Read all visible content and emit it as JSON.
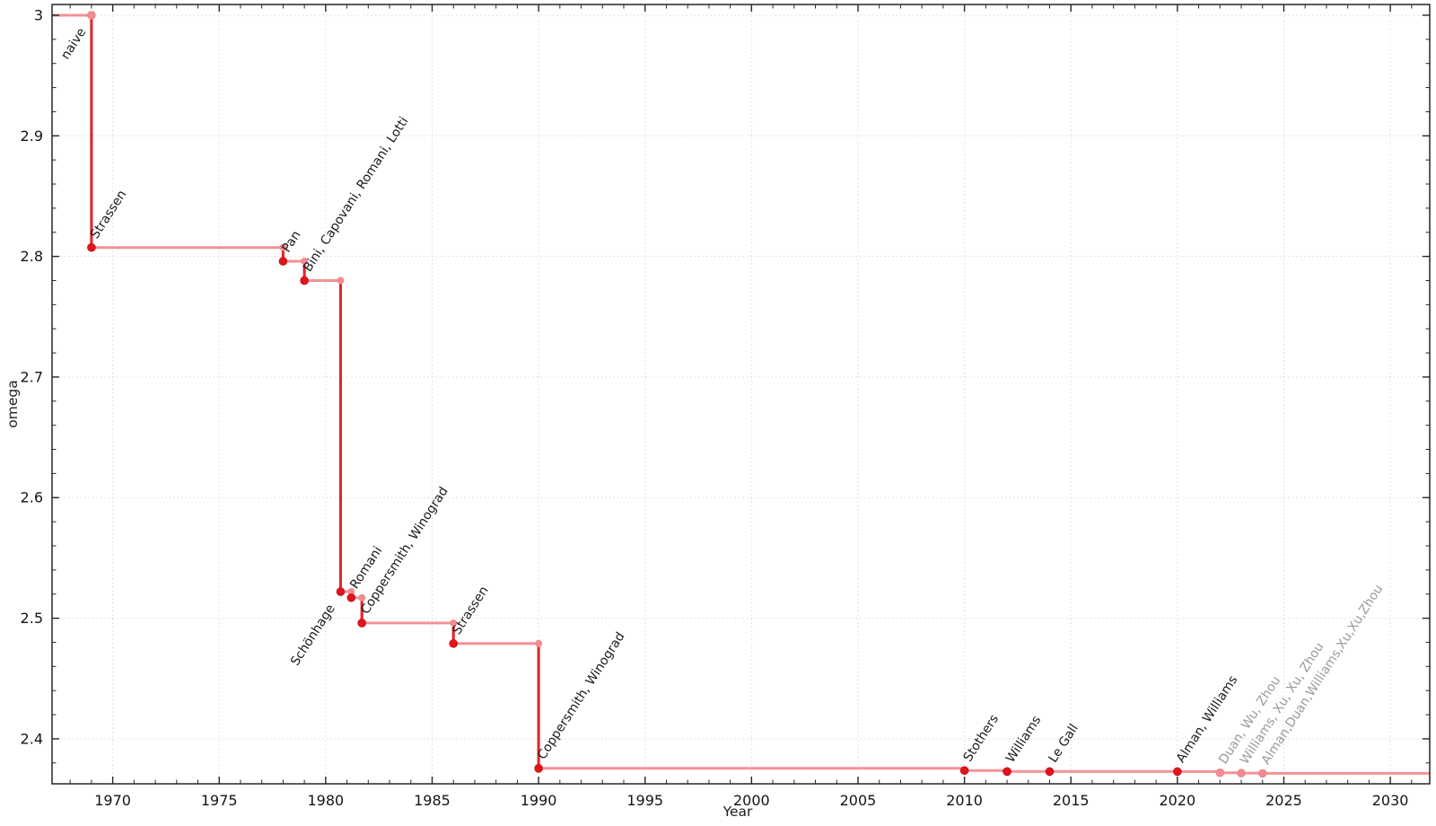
{
  "chart_data": {
    "type": "line",
    "line_style": "step-post",
    "title": "",
    "xlabel": "Year",
    "ylabel": "omega",
    "xlim": [
      1967.15,
      2031.85
    ],
    "ylim": [
      2.3627,
      3.0089
    ],
    "x_major_ticks": [
      1970,
      1975,
      1980,
      1985,
      1990,
      1995,
      2000,
      2005,
      2010,
      2015,
      2020,
      2025,
      2030
    ],
    "x_minor_step": 1,
    "y_major_ticks": [
      2.4,
      2.5,
      2.6,
      2.7,
      2.8,
      2.9,
      3.0
    ],
    "y_tick_labels": [
      "2.4",
      "2.5",
      "2.6",
      "2.7",
      "2.8",
      "2.9",
      "3"
    ],
    "y_minor_step": 0.02,
    "grid": "dotted-at-major-ticks",
    "legend": "none",
    "colors": {
      "step_line": "#f29296",
      "drop_line": "#e3252b",
      "point": "#e0151b",
      "secondary_point": "#ef8d91",
      "label": "#1a1a1a",
      "muted_label": "#9b9b9b",
      "grid": "#d9d9d9",
      "axis": "#262626",
      "background": "#ffffff"
    },
    "points": [
      {
        "label": "naive",
        "year": 1969,
        "omega": 3.0,
        "marker": "light",
        "muted": false,
        "label_anchor": "end"
      },
      {
        "label": "Strassen",
        "year": 1969,
        "omega": 2.8074,
        "marker": "dark",
        "muted": false
      },
      {
        "label": "Pan",
        "year": 1978,
        "omega": 2.796,
        "marker": "dark",
        "muted": false
      },
      {
        "label": "Bini, Capovani, Romani, Lotti",
        "year": 1979,
        "omega": 2.78,
        "marker": "dark",
        "muted": false
      },
      {
        "label": "Schönhage",
        "year": 1980.7,
        "omega": 2.522,
        "marker": "dark",
        "muted": false,
        "label_anchor": "end"
      },
      {
        "label": "Romani",
        "year": 1981.2,
        "omega": 2.517,
        "marker": "dark",
        "muted": false
      },
      {
        "label": "Coppersmith, Winograd",
        "year": 1981.7,
        "omega": 2.496,
        "marker": "dark",
        "muted": false
      },
      {
        "label": "Strassen",
        "year": 1986,
        "omega": 2.479,
        "marker": "dark",
        "muted": false
      },
      {
        "label": "Coppersmith, Winograd",
        "year": 1990,
        "omega": 2.3755,
        "marker": "dark",
        "muted": false
      },
      {
        "label": "Stothers",
        "year": 2010,
        "omega": 2.3737,
        "marker": "dark",
        "muted": false
      },
      {
        "label": "Williams",
        "year": 2012,
        "omega": 2.3729,
        "marker": "dark",
        "muted": false
      },
      {
        "label": "Le Gall",
        "year": 2014,
        "omega": 2.37287,
        "marker": "dark",
        "muted": false
      },
      {
        "label": "Alman, Williams",
        "year": 2020,
        "omega": 2.37286,
        "marker": "dark",
        "muted": false
      },
      {
        "label": "Duan, Wu, Zhou",
        "year": 2022,
        "omega": 2.37188,
        "marker": "light",
        "muted": true
      },
      {
        "label": "Williams, Xu, Xu, Zhou",
        "year": 2023,
        "omega": 2.371552,
        "marker": "light",
        "muted": true
      },
      {
        "label": "Alman,Duan,Williams,Xu,Xu,Zhou",
        "year": 2024,
        "omega": 2.371339,
        "marker": "light",
        "muted": true
      }
    ]
  }
}
